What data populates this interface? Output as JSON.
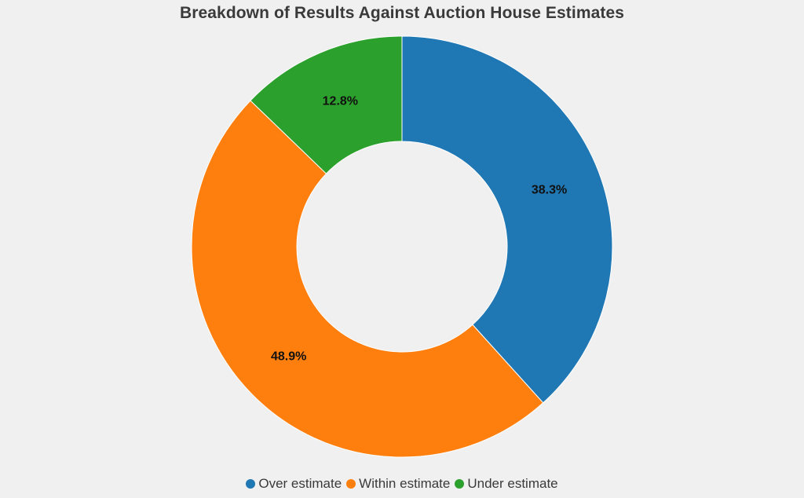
{
  "chart_data": {
    "type": "pie",
    "variant": "donut",
    "title": "Breakdown of Results Against Auction House Estimates",
    "categories": [
      "Over estimate",
      "Within estimate",
      "Under estimate"
    ],
    "values": [
      38.3,
      48.9,
      12.8
    ],
    "unit": "%",
    "data_labels": [
      "38.3%",
      "48.9%",
      "12.8%"
    ],
    "colors": [
      "#1f77b4",
      "#ff7f0e",
      "#2ca02c"
    ],
    "start_angle": "top (12 o'clock)",
    "direction": "clockwise",
    "legend_position": "bottom-center"
  }
}
